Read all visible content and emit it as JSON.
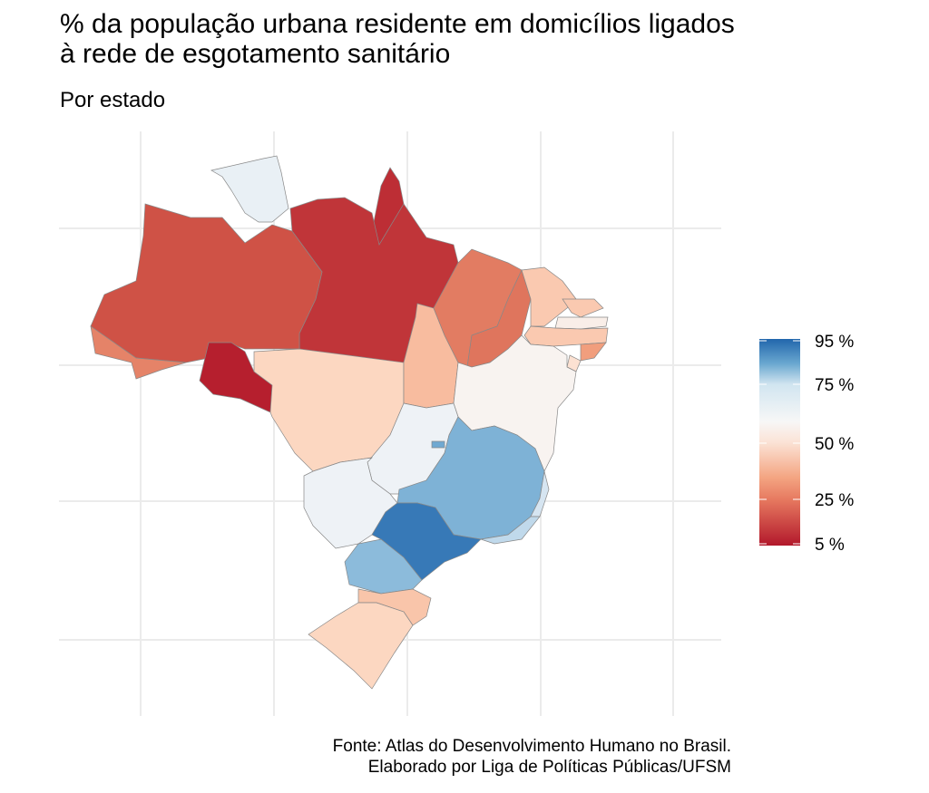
{
  "title_line1": "% da população urbana residente em domicílios ligados",
  "title_line2": "à rede de esgotamento sanitário",
  "subtitle": "Por estado",
  "caption_line1": "Fonte: Atlas do Desenvolvimento Humano no Brasil.",
  "caption_line2": "Elaborado por Liga de Políticas Públicas/UFSM",
  "legend": {
    "ticks": [
      {
        "label": "95 %",
        "value": 95
      },
      {
        "label": "75 %",
        "value": 75
      },
      {
        "label": "50 %",
        "value": 50
      },
      {
        "label": "25 %",
        "value": 25
      },
      {
        "label": "5 %",
        "value": 5
      }
    ]
  },
  "colors": {
    "low": "#b2182b",
    "mid": "#f7f7f7",
    "high": "#2166ac"
  },
  "states": [
    {
      "uf": "RR",
      "value": 62
    },
    {
      "uf": "AP",
      "value": 8
    },
    {
      "uf": "PA",
      "value": 9
    },
    {
      "uf": "AM",
      "value": 13
    },
    {
      "uf": "AC",
      "value": 20
    },
    {
      "uf": "RO",
      "value": 6
    },
    {
      "uf": "MT",
      "value": 36
    },
    {
      "uf": "TO",
      "value": 30
    },
    {
      "uf": "MA",
      "value": 19
    },
    {
      "uf": "PI",
      "value": 18
    },
    {
      "uf": "CE",
      "value": 33
    },
    {
      "uf": "RN",
      "value": 33
    },
    {
      "uf": "PB",
      "value": 46
    },
    {
      "uf": "PE",
      "value": 33
    },
    {
      "uf": "AL",
      "value": 24
    },
    {
      "uf": "SE",
      "value": 40
    },
    {
      "uf": "BA",
      "value": 48
    },
    {
      "uf": "GO",
      "value": 58
    },
    {
      "uf": "MS",
      "value": 58
    },
    {
      "uf": "MG",
      "value": 82
    },
    {
      "uf": "ES",
      "value": 68
    },
    {
      "uf": "RJ",
      "value": 72
    },
    {
      "uf": "SP",
      "value": 92
    },
    {
      "uf": "DF",
      "value": 84
    },
    {
      "uf": "PR",
      "value": 80
    },
    {
      "uf": "SC",
      "value": 32
    },
    {
      "uf": "RS",
      "value": 36
    }
  ]
}
